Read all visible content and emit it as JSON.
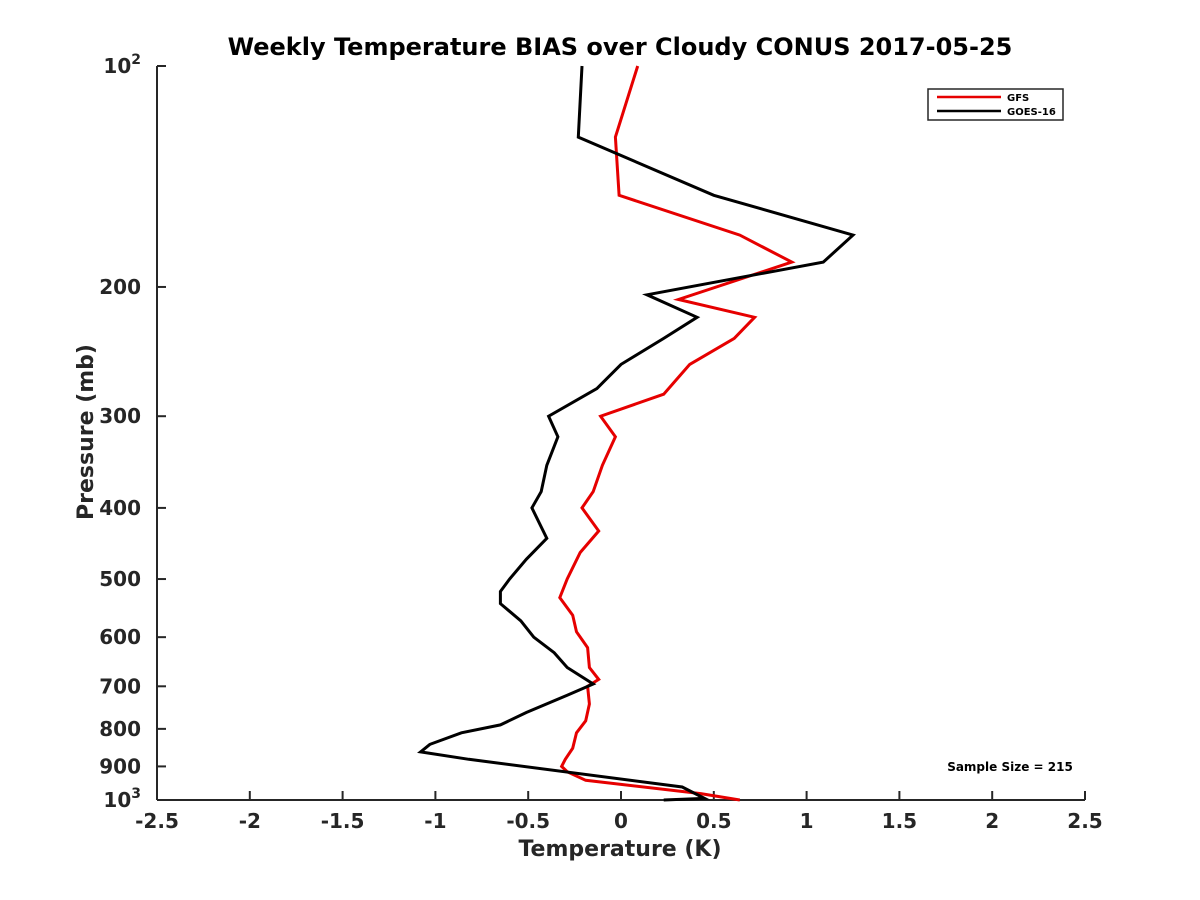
{
  "chart_data": {
    "type": "line",
    "title": "Weekly Temperature BIAS over Cloudy CONUS 2017-05-25",
    "xlabel": "Temperature (K)",
    "ylabel": "Pressure (mb)",
    "xlim": [
      -2.5,
      2.5
    ],
    "ylim": [
      100,
      1000
    ],
    "y_scale": "log",
    "y_reversed": true,
    "grid": false,
    "legend_position": "top-right",
    "x_ticks": [
      -2.5,
      -2,
      -1.5,
      -1,
      -0.5,
      0,
      0.5,
      1,
      1.5,
      2,
      2.5
    ],
    "x_tick_labels": [
      "-2.5",
      "-2",
      "-1.5",
      "-1",
      "-0.5",
      "0",
      "0.5",
      "1",
      "1.5",
      "2",
      "2.5"
    ],
    "y_ticks": [
      100,
      200,
      300,
      400,
      500,
      600,
      700,
      800,
      900,
      1000
    ],
    "y_tick_labels": [
      {
        "base": "10",
        "sup": "2"
      },
      {
        "base": "200",
        "sup": ""
      },
      {
        "base": "300",
        "sup": ""
      },
      {
        "base": "400",
        "sup": ""
      },
      {
        "base": "500",
        "sup": ""
      },
      {
        "base": "600",
        "sup": ""
      },
      {
        "base": "700",
        "sup": ""
      },
      {
        "base": "800",
        "sup": ""
      },
      {
        "base": "900",
        "sup": ""
      },
      {
        "base": "10",
        "sup": "3"
      }
    ],
    "series": [
      {
        "name": "GFS",
        "color": "#e60000",
        "points": [
          [
            0.09,
            100
          ],
          [
            -0.03,
            125
          ],
          [
            -0.01,
            150
          ],
          [
            0.64,
            170
          ],
          [
            0.92,
            185
          ],
          [
            0.31,
            208
          ],
          [
            0.72,
            220
          ],
          [
            0.61,
            235
          ],
          [
            0.37,
            255
          ],
          [
            0.23,
            280
          ],
          [
            -0.11,
            300
          ],
          [
            -0.03,
            320
          ],
          [
            -0.1,
            350
          ],
          [
            -0.15,
            380
          ],
          [
            -0.21,
            400
          ],
          [
            -0.12,
            430
          ],
          [
            -0.22,
            460
          ],
          [
            -0.29,
            500
          ],
          [
            -0.33,
            530
          ],
          [
            -0.26,
            560
          ],
          [
            -0.24,
            590
          ],
          [
            -0.18,
            620
          ],
          [
            -0.17,
            660
          ],
          [
            -0.12,
            685
          ],
          [
            -0.18,
            700
          ],
          [
            -0.17,
            740
          ],
          [
            -0.19,
            780
          ],
          [
            -0.24,
            810
          ],
          [
            -0.26,
            850
          ],
          [
            -0.3,
            880
          ],
          [
            -0.32,
            900
          ],
          [
            -0.29,
            915
          ],
          [
            -0.19,
            940
          ],
          [
            0.43,
            980
          ],
          [
            0.64,
            1000
          ]
        ]
      },
      {
        "name": "GOES-16",
        "color": "#000000",
        "points": [
          [
            -0.21,
            100
          ],
          [
            -0.23,
            125
          ],
          [
            0.5,
            150
          ],
          [
            1.25,
            170
          ],
          [
            1.09,
            185
          ],
          [
            0.14,
            205
          ],
          [
            0.41,
            220
          ],
          [
            0.23,
            235
          ],
          [
            0.0,
            255
          ],
          [
            -0.13,
            275
          ],
          [
            -0.39,
            300
          ],
          [
            -0.34,
            320
          ],
          [
            -0.4,
            350
          ],
          [
            -0.43,
            380
          ],
          [
            -0.48,
            400
          ],
          [
            -0.4,
            440
          ],
          [
            -0.51,
            470
          ],
          [
            -0.6,
            500
          ],
          [
            -0.65,
            520
          ],
          [
            -0.65,
            540
          ],
          [
            -0.54,
            570
          ],
          [
            -0.47,
            600
          ],
          [
            -0.36,
            630
          ],
          [
            -0.29,
            660
          ],
          [
            -0.15,
            695
          ],
          [
            -0.29,
            720
          ],
          [
            -0.51,
            760
          ],
          [
            -0.65,
            790
          ],
          [
            -0.86,
            810
          ],
          [
            -1.03,
            840
          ],
          [
            -1.08,
            860
          ],
          [
            -0.82,
            880
          ],
          [
            0.33,
            960
          ],
          [
            0.45,
            995
          ],
          [
            0.23,
            1000
          ]
        ]
      }
    ],
    "annotation": "Sample Size = 215"
  }
}
